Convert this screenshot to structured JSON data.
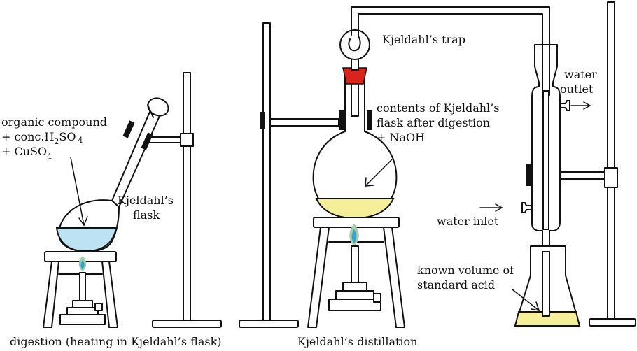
{
  "colors": {
    "blue_liquid": "#bde3f3",
    "yellow_liquid": "#f5ef9a",
    "trap_stopper": "#d9241c",
    "flame_outer": "#9fd0a8",
    "flame_inner": "#3aa0d8",
    "clamp": "#111111"
  },
  "labels": {
    "organic_line1": "organic compound",
    "organic_line2_prefix": "+ conc.H",
    "organic_line2_sub1": "2",
    "organic_line2_mid": "SO",
    "organic_line2_sub2": "4",
    "organic_line3_prefix": "+ CuSO",
    "organic_line3_sub": "4",
    "kjeldahl_flask_line1": "Kjeldahl’s",
    "kjeldahl_flask_line2": "flask",
    "kjeldahl_trap": "Kjeldahl’s trap",
    "contents_line1": "contents of Kjeldahl’s",
    "contents_line2": "flask after digestion",
    "contents_line3": "+ NaOH",
    "water_outlet_line1": "water",
    "water_outlet_line2": "outlet",
    "water_inlet": "water inlet",
    "known_volume_line1": "known volume of",
    "known_volume_line2": "standard acid"
  },
  "captions": {
    "digestion": "digestion (heating in Kjeldahl’s flask)",
    "distillation": "Kjeldahl’s distillation"
  },
  "icons": {
    "burner": "bunsen-burner-icon",
    "flame": "flame-icon",
    "stand": "retort-stand-icon"
  }
}
